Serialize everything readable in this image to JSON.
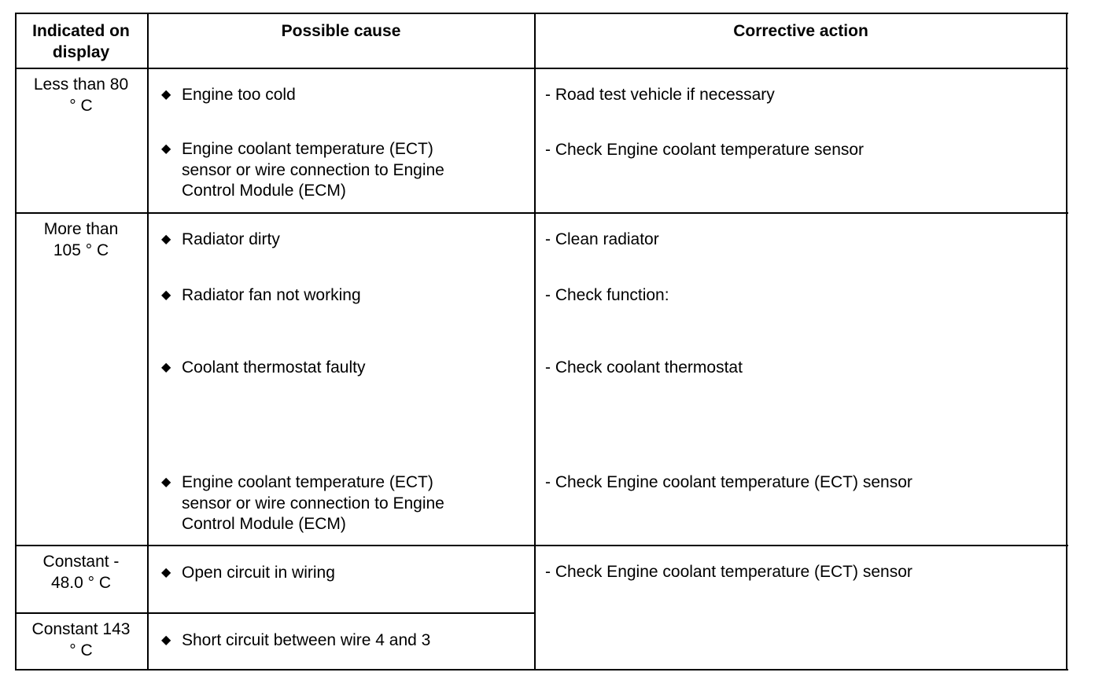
{
  "headers": [
    "Indicated on\ndisplay",
    "Possible cause",
    "Corrective action"
  ],
  "header_lines": {
    "col1": [
      "Indicated on",
      "display"
    ],
    "col2": "Possible cause",
    "col3": "Corrective action"
  },
  "bullet_icon": "diamond-bullet",
  "rows": [
    {
      "indicated": [
        "Less than 80",
        "° C"
      ],
      "causes": [
        [
          "Engine too cold"
        ],
        [
          "Engine coolant temperature (ECT)",
          "sensor or wire connection to Engine",
          "Control Module (ECM)"
        ]
      ],
      "actions": [
        "- Road test vehicle if necessary",
        "- Check Engine coolant temperature sensor"
      ]
    },
    {
      "indicated": [
        "More than",
        "105  ° C"
      ],
      "causes": [
        [
          "Radiator dirty"
        ],
        [
          "Radiator fan not working"
        ],
        [
          "Coolant thermostat faulty"
        ],
        [
          "Engine coolant temperature (ECT)",
          "sensor or wire connection to Engine",
          "Control Module (ECM)"
        ]
      ],
      "actions": [
        "- Clean radiator",
        "- Check function:",
        "- Check coolant thermostat",
        "- Check Engine coolant temperature (ECT) sensor"
      ]
    },
    {
      "indicated": [
        "Constant -",
        "48.0  ° C"
      ],
      "causes": [
        [
          "Open circuit in wiring"
        ]
      ],
      "actions": [
        "- Check Engine coolant temperature (ECT) sensor"
      ]
    },
    {
      "indicated": [
        "Constant 143",
        "° C"
      ],
      "causes": [
        [
          "Short circuit between wire 4 and 3"
        ]
      ]
    }
  ]
}
